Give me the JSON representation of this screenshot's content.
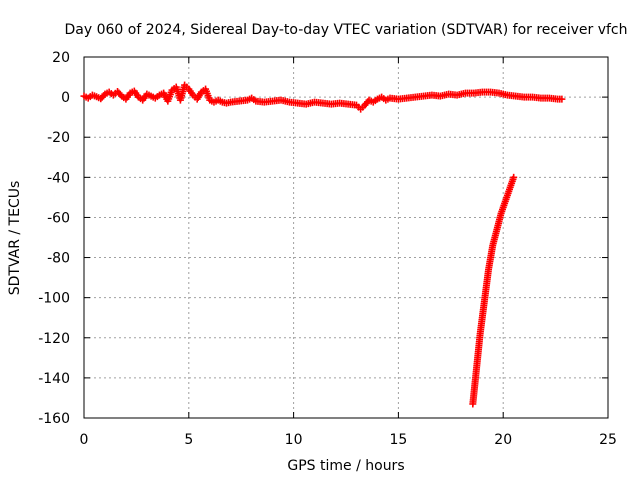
{
  "chart_data": {
    "type": "scatter",
    "title": "Day 060 of 2024, Sidereal Day-to-day VTEC variation (SDTVAR) for receiver vfch",
    "xlabel": "GPS time / hours",
    "ylabel": "SDTVAR / TECUs",
    "xlim": [
      0,
      25
    ],
    "ylim": [
      -160,
      20
    ],
    "xticks": [
      0,
      5,
      10,
      15,
      20,
      25
    ],
    "yticks": [
      20,
      0,
      -20,
      -40,
      -60,
      -80,
      -100,
      -120,
      -140,
      -160
    ],
    "grid": true,
    "marker": "plus",
    "color": "#ff0000",
    "series": [
      {
        "name": "SDTVAR",
        "points": [
          [
            0.0,
            0.5
          ],
          [
            0.2,
            -0.5
          ],
          [
            0.4,
            1.0
          ],
          [
            0.6,
            0.2
          ],
          [
            0.8,
            -0.8
          ],
          [
            1.0,
            1.5
          ],
          [
            1.2,
            2.5
          ],
          [
            1.4,
            1.0
          ],
          [
            1.6,
            2.8
          ],
          [
            1.8,
            0.5
          ],
          [
            2.0,
            -1.0
          ],
          [
            2.2,
            2.0
          ],
          [
            2.4,
            3.0
          ],
          [
            2.6,
            0.0
          ],
          [
            2.8,
            -1.5
          ],
          [
            3.0,
            1.5
          ],
          [
            3.2,
            0.5
          ],
          [
            3.4,
            -0.5
          ],
          [
            3.6,
            1.0
          ],
          [
            3.8,
            2.0
          ],
          [
            4.0,
            -2.0
          ],
          [
            4.2,
            3.5
          ],
          [
            4.4,
            5.0
          ],
          [
            4.6,
            -1.5
          ],
          [
            4.8,
            6.0
          ],
          [
            5.0,
            4.0
          ],
          [
            5.2,
            1.0
          ],
          [
            5.4,
            -1.0
          ],
          [
            5.6,
            2.5
          ],
          [
            5.8,
            4.0
          ],
          [
            6.0,
            -1.5
          ],
          [
            6.2,
            -2.5
          ],
          [
            6.4,
            -1.5
          ],
          [
            6.6,
            -2.5
          ],
          [
            6.8,
            -3.0
          ],
          [
            7.0,
            -2.5
          ],
          [
            7.4,
            -2.0
          ],
          [
            7.8,
            -1.5
          ],
          [
            8.0,
            -0.5
          ],
          [
            8.2,
            -2.0
          ],
          [
            8.6,
            -2.5
          ],
          [
            9.0,
            -2.0
          ],
          [
            9.4,
            -1.5
          ],
          [
            9.8,
            -2.5
          ],
          [
            10.2,
            -3.0
          ],
          [
            10.6,
            -3.5
          ],
          [
            11.0,
            -2.5
          ],
          [
            11.4,
            -3.0
          ],
          [
            11.8,
            -3.5
          ],
          [
            12.2,
            -3.0
          ],
          [
            12.6,
            -3.5
          ],
          [
            13.0,
            -4.0
          ],
          [
            13.2,
            -6.0
          ],
          [
            13.4,
            -4.0
          ],
          [
            13.6,
            -1.5
          ],
          [
            13.8,
            -2.5
          ],
          [
            14.0,
            -1.0
          ],
          [
            14.2,
            0.0
          ],
          [
            14.4,
            -1.5
          ],
          [
            14.6,
            -0.5
          ],
          [
            15.0,
            -1.0
          ],
          [
            15.4,
            -0.5
          ],
          [
            15.8,
            0.0
          ],
          [
            16.2,
            0.5
          ],
          [
            16.6,
            1.0
          ],
          [
            17.0,
            0.5
          ],
          [
            17.4,
            1.5
          ],
          [
            17.8,
            1.0
          ],
          [
            18.2,
            2.0
          ],
          [
            18.6,
            2.0
          ],
          [
            19.0,
            2.5
          ],
          [
            19.4,
            2.5
          ],
          [
            19.8,
            2.0
          ],
          [
            20.2,
            1.0
          ],
          [
            20.6,
            0.5
          ],
          [
            21.0,
            0.0
          ],
          [
            21.4,
            0.0
          ],
          [
            21.8,
            -0.5
          ],
          [
            22.2,
            -0.5
          ],
          [
            22.6,
            -1.0
          ],
          [
            22.8,
            -1.0
          ],
          [
            18.55,
            -153
          ],
          [
            18.6,
            -148
          ],
          [
            18.65,
            -143
          ],
          [
            18.7,
            -138
          ],
          [
            18.75,
            -133
          ],
          [
            18.8,
            -128
          ],
          [
            18.85,
            -123
          ],
          [
            18.9,
            -118
          ],
          [
            18.95,
            -114
          ],
          [
            19.0,
            -110
          ],
          [
            19.05,
            -106
          ],
          [
            19.1,
            -102
          ],
          [
            19.15,
            -98
          ],
          [
            19.2,
            -94
          ],
          [
            19.25,
            -90
          ],
          [
            19.3,
            -86
          ],
          [
            19.35,
            -83
          ],
          [
            19.4,
            -80
          ],
          [
            19.45,
            -77
          ],
          [
            19.5,
            -74
          ],
          [
            19.6,
            -70
          ],
          [
            19.7,
            -66
          ],
          [
            19.8,
            -62
          ],
          [
            19.9,
            -58
          ],
          [
            20.0,
            -55
          ],
          [
            20.1,
            -52
          ],
          [
            20.2,
            -49
          ],
          [
            20.3,
            -46
          ],
          [
            20.4,
            -43
          ],
          [
            20.5,
            -40
          ]
        ]
      }
    ]
  }
}
